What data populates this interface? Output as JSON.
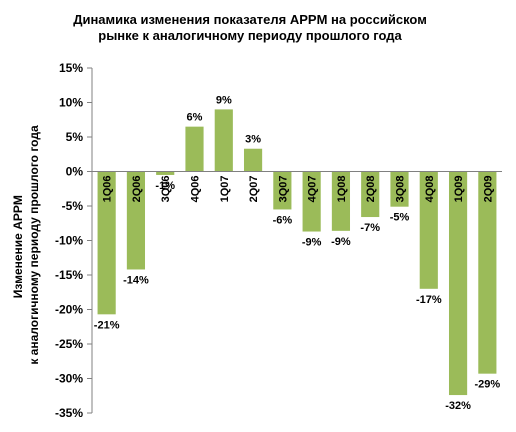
{
  "chart_data": {
    "type": "bar",
    "title": "Динамика изменения показателя APPM на российском рынке к аналогичному периоду прошлого года",
    "ylabel_lines": [
      "Изменение APPM",
      "к аналогичному периоду прошлого года"
    ],
    "xlabel": "",
    "categories": [
      "1Q06",
      "2Q06",
      "3Q06",
      "4Q06",
      "1Q07",
      "2Q07",
      "3Q07",
      "4Q07",
      "1Q08",
      "2Q08",
      "3Q08",
      "4Q08",
      "1Q09",
      "2Q09"
    ],
    "values": [
      -20.7,
      -14.2,
      -0.5,
      6.5,
      9.0,
      3.3,
      -5.5,
      -8.7,
      -8.6,
      -6.6,
      -5.1,
      -17.0,
      -32.4,
      -29.3
    ],
    "data_labels": [
      "-21%",
      "-14%",
      "-1%",
      "6%",
      "9%",
      "3%",
      "-6%",
      "-9%",
      "-9%",
      "-7%",
      "-5%",
      "-17%",
      "-32%",
      "-29%"
    ],
    "ylim": [
      -35,
      15
    ],
    "yticks": [
      15,
      10,
      5,
      0,
      -5,
      -10,
      -15,
      -20,
      -25,
      -30,
      -35
    ],
    "ytick_labels": [
      "15%",
      "10%",
      "5%",
      "0%",
      "-5%",
      "-10%",
      "-15%",
      "-20%",
      "-25%",
      "-30%",
      "-35%"
    ],
    "bar_color": "#9bbb59",
    "grid": false,
    "legend": "none"
  }
}
